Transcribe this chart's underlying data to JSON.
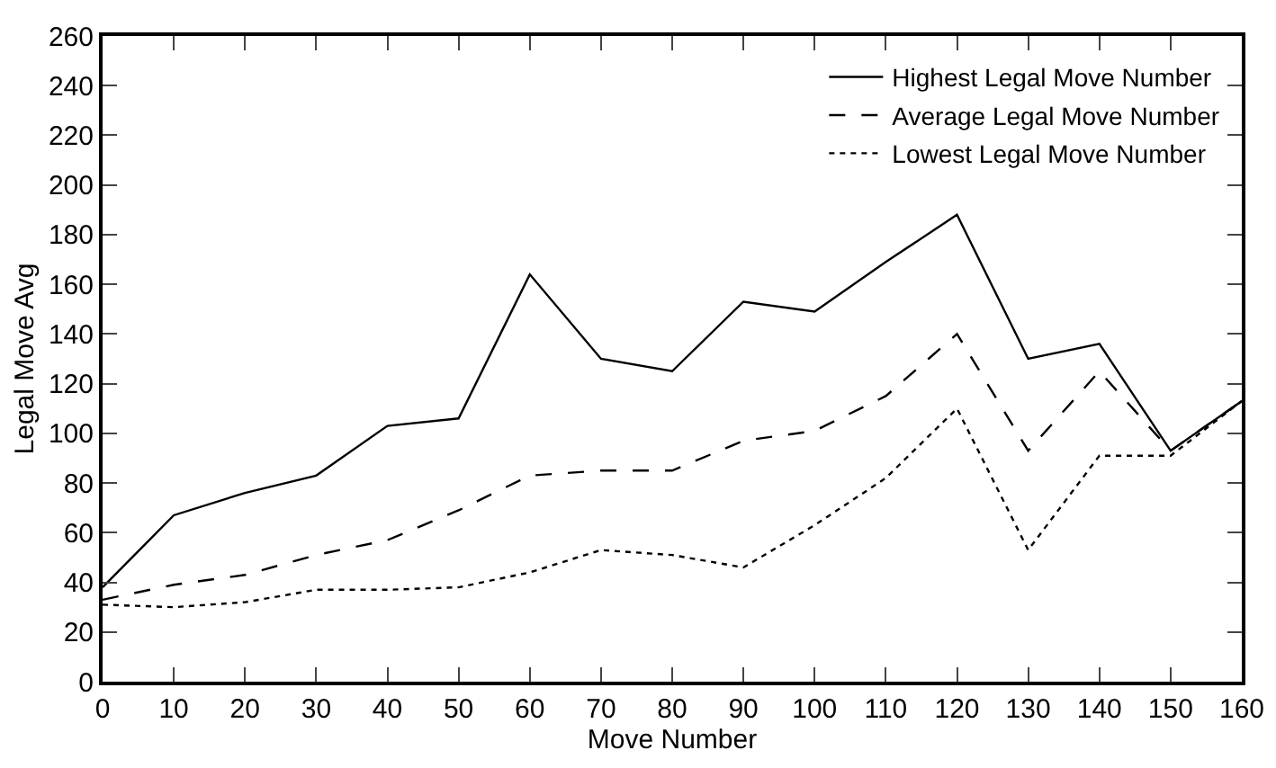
{
  "chart_data": {
    "type": "line",
    "xlabel": "Move Number",
    "ylabel": "Legal Move Avg",
    "x": [
      0,
      10,
      20,
      30,
      40,
      50,
      60,
      70,
      80,
      90,
      100,
      110,
      120,
      130,
      140,
      150,
      160
    ],
    "series": [
      {
        "name": "Highest Legal Move Number",
        "color": "#000000",
        "line_style": "solid",
        "values": [
          38,
          67,
          76,
          83,
          103,
          106,
          164,
          130,
          125,
          153,
          149,
          169,
          188,
          130,
          136,
          93,
          113
        ]
      },
      {
        "name": "Average Legal Move Number",
        "color": "#000000",
        "line_style": "dashed",
        "values": [
          33,
          39,
          43,
          51,
          57,
          69,
          83,
          85,
          85,
          97,
          101,
          115,
          140,
          93,
          125,
          93,
          113
        ]
      },
      {
        "name": "Lowest Legal Move Number",
        "color": "#000000",
        "line_style": "dotted",
        "values": [
          31,
          30,
          32,
          37,
          37,
          38,
          44,
          53,
          51,
          46,
          63,
          82,
          110,
          53,
          91,
          91,
          113
        ]
      }
    ],
    "xlim": [
      0,
      160
    ],
    "xticks": [
      0,
      10,
      20,
      30,
      40,
      50,
      60,
      70,
      80,
      90,
      100,
      110,
      120,
      130,
      140,
      150,
      160
    ],
    "ylim": [
      0,
      260
    ],
    "yticks": [
      0,
      20,
      40,
      60,
      80,
      100,
      120,
      140,
      160,
      180,
      200,
      220,
      240,
      260
    ],
    "grid": false,
    "legend": "top right",
    "marker": "none"
  }
}
